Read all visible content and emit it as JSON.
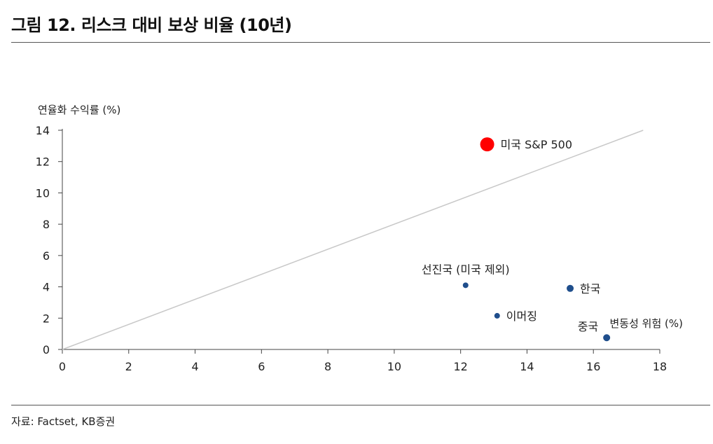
{
  "header": {
    "title": "그림 12. 리스크 대비 보상 비율 (10년)"
  },
  "footer": {
    "source": "자료: Factset, KB증권"
  },
  "chart_data": {
    "type": "scatter",
    "title": "그림 12. 리스크 대비 보상 비율 (10년)",
    "xlabel": "변동성 위험 (%)",
    "ylabel": "연율화 수익률 (%)",
    "xlim": [
      0,
      18
    ],
    "ylim": [
      0,
      14
    ],
    "x_ticks": [
      0,
      2,
      4,
      6,
      8,
      10,
      12,
      14,
      16,
      18
    ],
    "y_ticks": [
      0,
      2,
      4,
      6,
      8,
      10,
      12,
      14
    ],
    "grid": false,
    "points": [
      {
        "label": "미국 S&P 500",
        "x": 12.8,
        "y": 13.1,
        "color": "#ff0000",
        "size": "large",
        "label_pos": "right"
      },
      {
        "label": "선진국 (미국 제외)",
        "x": 12.15,
        "y": 4.1,
        "color": "#1f4e8c",
        "size": "small",
        "label_pos": "above"
      },
      {
        "label": "한국",
        "x": 15.3,
        "y": 3.9,
        "color": "#1f4e8c",
        "size": "medium",
        "label_pos": "right"
      },
      {
        "label": "이머징",
        "x": 13.1,
        "y": 2.15,
        "color": "#1f4e8c",
        "size": "small",
        "label_pos": "right"
      },
      {
        "label": "중국",
        "x": 16.4,
        "y": 0.75,
        "color": "#1f4e8c",
        "size": "medium",
        "label_pos": "above-left"
      }
    ],
    "reference_line": {
      "from": [
        0,
        0
      ],
      "to": [
        17.5,
        14.0
      ],
      "color": "#c8c8c8"
    }
  }
}
